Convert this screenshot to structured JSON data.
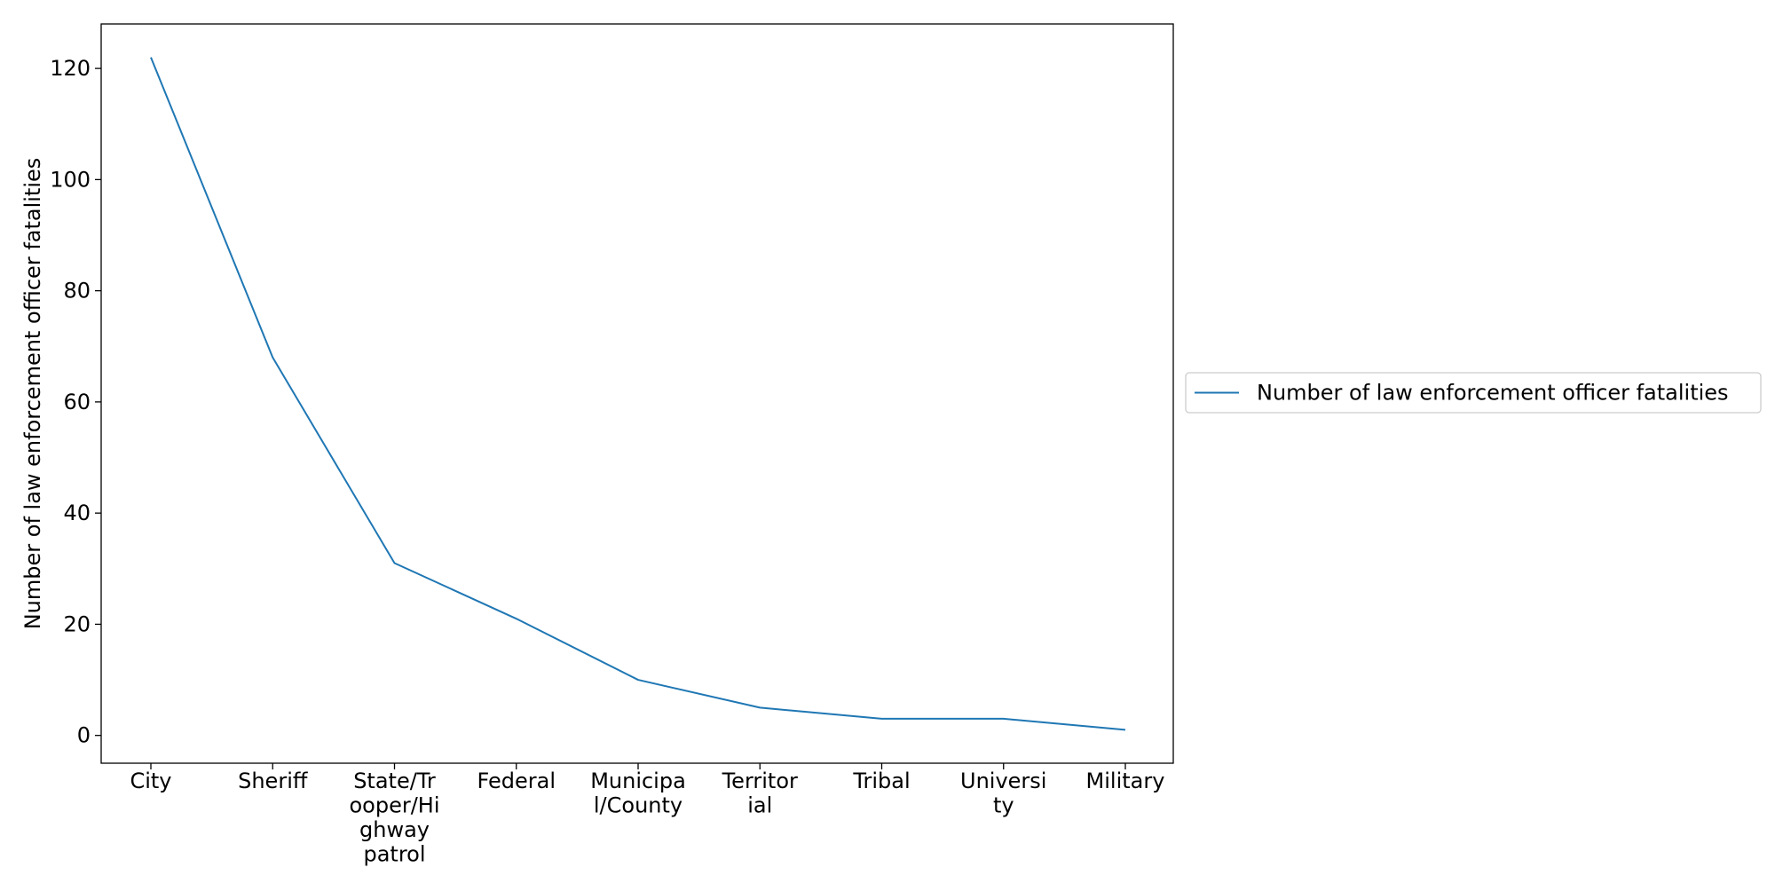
{
  "chart_data": {
    "type": "line",
    "categories": [
      [
        "City"
      ],
      [
        "Sheriff"
      ],
      [
        "State/Tr",
        "ooper/Hi",
        "ghway",
        "patrol"
      ],
      [
        "Federal"
      ],
      [
        "Municipa",
        "l/County"
      ],
      [
        "Territor",
        "ial"
      ],
      [
        "Tribal"
      ],
      [
        "Universi",
        "ty"
      ],
      [
        "Military"
      ]
    ],
    "series": [
      {
        "name": "Number of law enforcement officer fatalities",
        "values": [
          122,
          68,
          31,
          21,
          10,
          5,
          3,
          3,
          1
        ],
        "color": "#1f77b4"
      }
    ],
    "title": "",
    "xlabel": "",
    "ylabel": "Number of law enforcement officer fatalities",
    "ylim": [
      -5,
      128
    ],
    "yticks": [
      0,
      20,
      40,
      60,
      80,
      100,
      120
    ],
    "grid": false,
    "legend": "center-right outside"
  }
}
